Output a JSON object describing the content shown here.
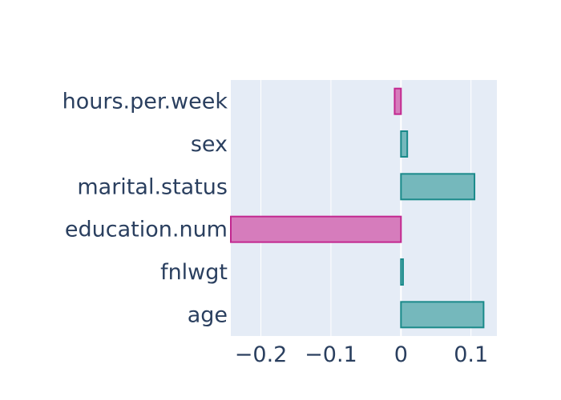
{
  "chart_data": {
    "type": "bar",
    "orientation": "horizontal",
    "categories": [
      "age",
      "fnlwgt",
      "education.num",
      "marital.status",
      "sex",
      "hours.per.week"
    ],
    "values": [
      0.118,
      0.003,
      -0.243,
      0.105,
      0.009,
      -0.009
    ],
    "title": "",
    "xlabel": "",
    "ylabel": "",
    "xlim": [
      -0.243,
      0.137
    ],
    "x_ticks": [
      -0.2,
      -0.1,
      0,
      0.1
    ],
    "x_tick_labels": [
      "−0.2",
      "−0.1",
      "0",
      "0.1"
    ],
    "grid": true,
    "legend": "none",
    "colors": {
      "positive_fill": "#75b8bc",
      "positive_line": "#1a8a8a",
      "negative_fill": "#d67cbc",
      "negative_line": "#c2278f",
      "plot_background": "#e5ecf6",
      "grid": "#ffffff",
      "text": "#2a3f5f"
    }
  }
}
